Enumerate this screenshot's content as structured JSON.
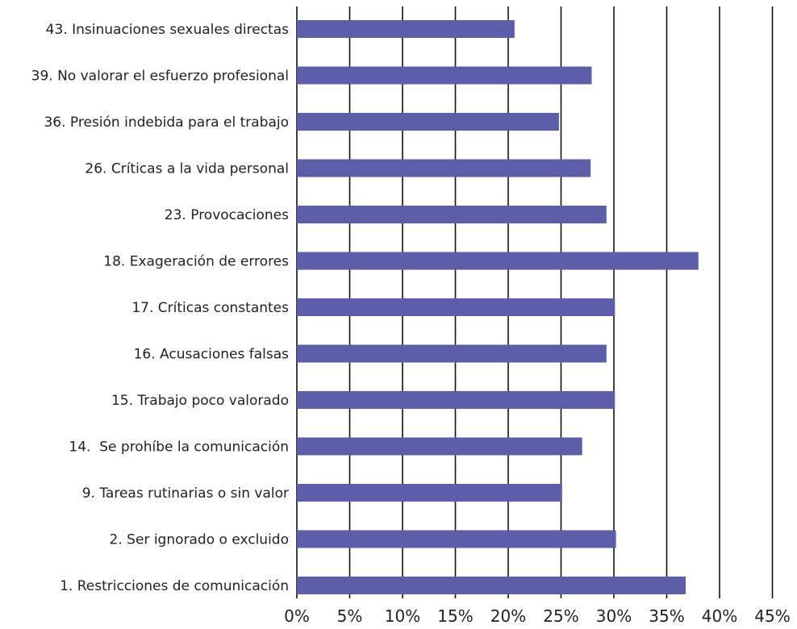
{
  "chart_data": {
    "type": "bar",
    "orientation": "horizontal",
    "categories": [
      "43. Insinuaciones sexuales directas",
      "39. No valorar el esfuerzo profesional",
      "36. Presión indebida para el trabajo",
      "26. Críticas a la vida personal",
      "23. Provocaciones",
      "18. Exageración de errores",
      "17. Críticas constantes",
      "16. Acusaciones falsas",
      "15. Trabajo poco valorado",
      "14.  Se prohíbe la comunicación",
      "9. Tareas rutinarias o sin valor",
      "2. Ser ignorado o excluido",
      "1. Restricciones de comunicación"
    ],
    "values": [
      20.6,
      27.9,
      24.8,
      27.8,
      29.3,
      38.0,
      30.1,
      29.3,
      30.1,
      27.0,
      25.1,
      30.2,
      36.8
    ],
    "xlim": [
      0,
      45
    ],
    "ticks": [
      0,
      5,
      10,
      15,
      20,
      25,
      30,
      35,
      40,
      45
    ],
    "tick_labels": [
      "0%",
      "5%",
      "10%",
      "15%",
      "20%",
      "25%",
      "30%",
      "35%",
      "40%",
      "45%"
    ],
    "grid": true,
    "bar_color": "#5b5ea9",
    "grid_color": "#111111"
  }
}
